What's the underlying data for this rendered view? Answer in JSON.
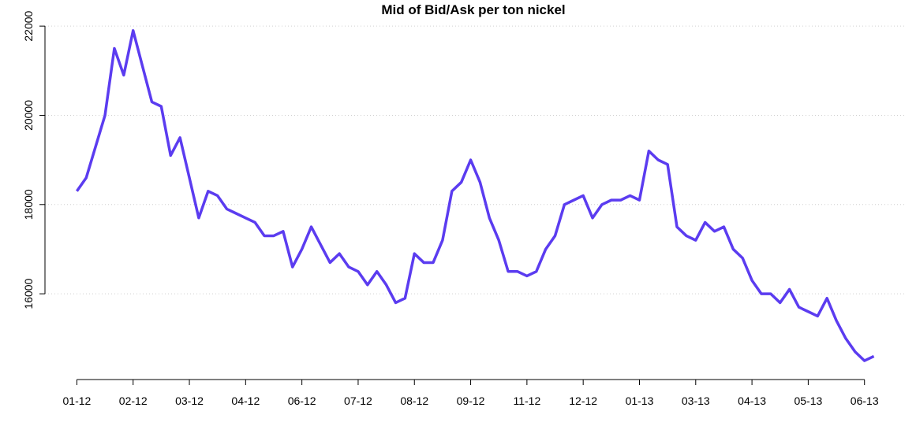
{
  "chart_data": {
    "type": "line",
    "title": "Mid of Bid/Ask per ton nickel",
    "x": [
      0,
      1,
      2,
      3,
      4,
      5,
      6,
      7,
      8,
      9,
      10,
      11,
      12,
      13,
      14,
      15,
      16,
      17,
      18,
      19,
      20,
      21,
      22,
      23,
      24,
      25,
      26,
      27,
      28,
      29,
      30,
      31,
      32,
      33,
      34,
      35,
      36,
      37,
      38,
      39,
      40,
      41,
      42,
      43,
      44,
      45,
      46,
      47,
      48,
      49,
      50,
      51,
      52,
      53,
      54,
      55,
      56,
      57,
      58,
      59,
      60,
      61,
      62,
      63,
      64,
      65,
      66,
      67,
      68,
      69,
      70,
      71,
      72,
      73,
      74,
      75,
      76,
      77,
      78,
      79,
      80,
      81,
      82,
      83,
      84,
      85
    ],
    "series": [
      {
        "name": "Mid of Bid/Ask",
        "color": "#5b3cf0",
        "values": [
          18300,
          18600,
          19300,
          20000,
          21500,
          20900,
          21900,
          21100,
          20300,
          20200,
          19100,
          19500,
          18600,
          17700,
          18300,
          18200,
          17900,
          17800,
          17700,
          17600,
          17300,
          17300,
          17400,
          16600,
          17000,
          17500,
          17100,
          16700,
          16900,
          16600,
          16500,
          16200,
          16500,
          16200,
          15800,
          15900,
          16900,
          16700,
          16700,
          17200,
          18300,
          18500,
          19000,
          18500,
          17700,
          17200,
          16500,
          16500,
          16400,
          16500,
          17000,
          17300,
          18000,
          18100,
          18200,
          17700,
          18000,
          18100,
          18100,
          18200,
          18100,
          19200,
          19000,
          18900,
          17500,
          17300,
          17200,
          17600,
          17400,
          17500,
          17000,
          16800,
          16300,
          16000,
          16000,
          15800,
          16100,
          15700,
          15600,
          15500,
          15900,
          15400,
          15000,
          14700,
          14500,
          14600
        ]
      }
    ],
    "xlim": [
      -3.4,
      88.4
    ],
    "xticks": [
      {
        "value": 0,
        "label": "01-12"
      },
      {
        "value": 6,
        "label": "02-12"
      },
      {
        "value": 12,
        "label": "03-12"
      },
      {
        "value": 18,
        "label": "04-12"
      },
      {
        "value": 24,
        "label": "06-12"
      },
      {
        "value": 30,
        "label": "07-12"
      },
      {
        "value": 36,
        "label": "08-12"
      },
      {
        "value": 42,
        "label": "09-12"
      },
      {
        "value": 48,
        "label": "11-12"
      },
      {
        "value": 54,
        "label": "12-12"
      },
      {
        "value": 60,
        "label": "01-13"
      },
      {
        "value": 66,
        "label": "03-13"
      },
      {
        "value": 72,
        "label": "04-13"
      },
      {
        "value": 78,
        "label": "05-13"
      },
      {
        "value": 84,
        "label": "06-13"
      }
    ],
    "ylim": [
      14078,
      22232
    ],
    "yticks": [
      16000,
      18000,
      20000,
      22000
    ],
    "grid": true
  }
}
